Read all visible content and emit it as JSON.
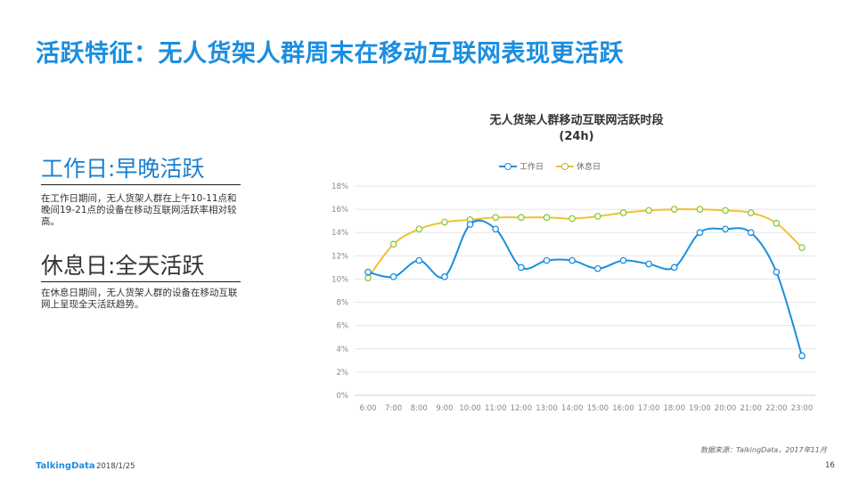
{
  "page": {
    "title": "活跃特征：无人货架人群周末在移动互联网表现更活跃"
  },
  "left_panel": {
    "section1": {
      "heading": "工作日:早晚活跃",
      "body": "在工作日期间，无人货架人群在上午10-11点和晚间19-21点的设备在移动互联网活跃率相对较高。"
    },
    "section2": {
      "heading": "休息日:全天活跃",
      "body": "在休息日期间，无人货架人群的设备在移动互联网上呈现全天活跃趋势。"
    }
  },
  "chart_data": {
    "type": "line",
    "title": "无人货架人群移动互联网活跃时段",
    "subtitle": "(24h)",
    "categories": [
      "6:00",
      "7:00",
      "8:00",
      "9:00",
      "10:00",
      "11:00",
      "12:00",
      "13:00",
      "14:00",
      "15:00",
      "16:00",
      "17:00",
      "18:00",
      "19:00",
      "20:00",
      "21:00",
      "22:00",
      "23:00"
    ],
    "y_ticks": [
      "0%",
      "2%",
      "4%",
      "6%",
      "8%",
      "10%",
      "12%",
      "14%",
      "16%",
      "18%"
    ],
    "ylim": [
      0,
      18
    ],
    "grid": "horizontal",
    "legend_position": "top",
    "series": [
      {
        "name": "工作日",
        "color": "#1a8ee0",
        "values": [
          10.6,
          10.2,
          11.6,
          10.2,
          14.7,
          14.3,
          11.0,
          11.6,
          11.6,
          10.9,
          11.6,
          11.3,
          11.0,
          14.0,
          14.3,
          14.0,
          10.6,
          3.4
        ]
      },
      {
        "name": "休息日",
        "color": "#f2c12e",
        "values": [
          10.1,
          13.0,
          14.3,
          14.9,
          15.1,
          15.3,
          15.3,
          15.3,
          15.2,
          15.4,
          15.7,
          15.9,
          16.0,
          16.0,
          15.9,
          15.7,
          14.8,
          12.7
        ]
      }
    ],
    "source": "数据来源：TalkingData，2017年11月"
  },
  "footer": {
    "logo": "TalkingData",
    "date": "2018/1/25",
    "page_number": "16"
  }
}
